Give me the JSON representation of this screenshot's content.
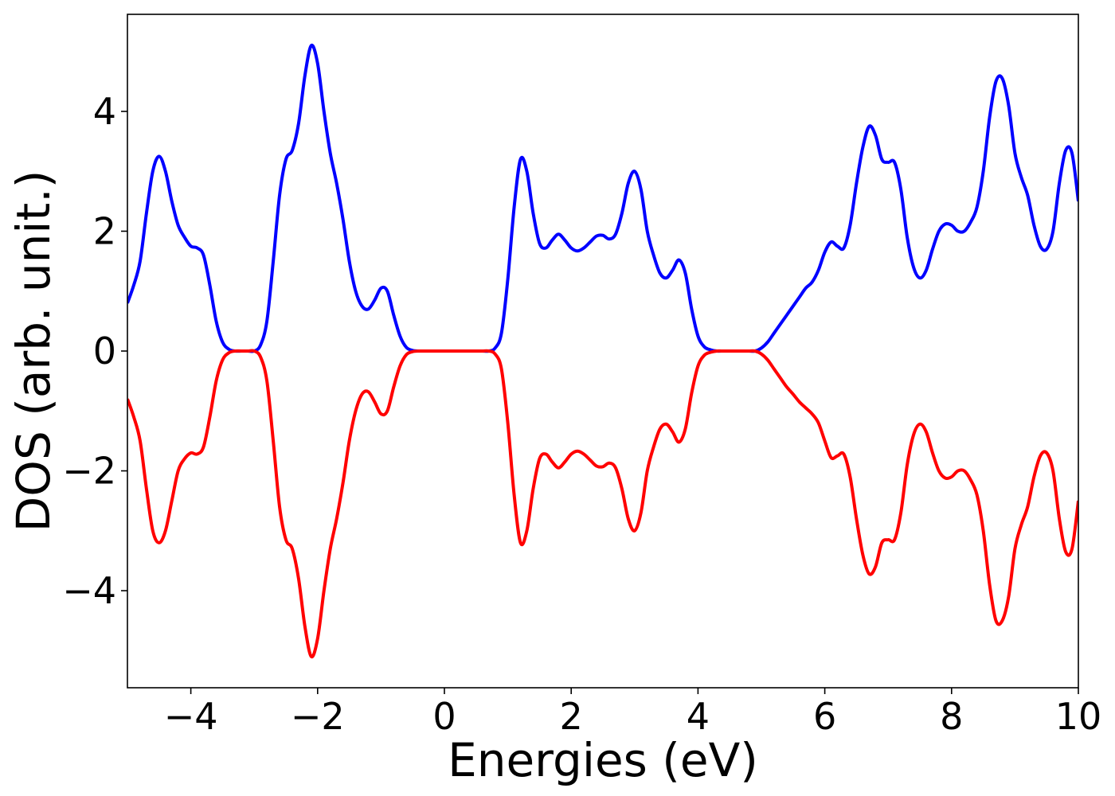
{
  "chart_data": {
    "type": "line",
    "xlabel": "Energies (eV)",
    "ylabel": "DOS (arb. unit.)",
    "x": [
      -5.0,
      -4.9,
      -4.8,
      -4.7,
      -4.6,
      -4.5,
      -4.4,
      -4.3,
      -4.2,
      -4.1,
      -4.0,
      -3.9,
      -3.8,
      -3.7,
      -3.6,
      -3.5,
      -3.4,
      -3.3,
      -3.2,
      -3.1,
      -3.0,
      -2.9,
      -2.8,
      -2.7,
      -2.6,
      -2.5,
      -2.4,
      -2.3,
      -2.2,
      -2.1,
      -2.0,
      -1.9,
      -1.8,
      -1.7,
      -1.6,
      -1.5,
      -1.4,
      -1.3,
      -1.2,
      -1.1,
      -1.0,
      -0.9,
      -0.8,
      -0.7,
      -0.6,
      -0.5,
      -0.4,
      -0.3,
      -0.2,
      -0.1,
      0.0,
      0.1,
      0.2,
      0.3,
      0.4,
      0.5,
      0.6,
      0.7,
      0.8,
      0.9,
      1.0,
      1.1,
      1.2,
      1.3,
      1.4,
      1.5,
      1.6,
      1.7,
      1.8,
      1.9,
      2.0,
      2.1,
      2.2,
      2.3,
      2.4,
      2.5,
      2.6,
      2.7,
      2.8,
      2.9,
      3.0,
      3.1,
      3.2,
      3.3,
      3.4,
      3.5,
      3.6,
      3.7,
      3.8,
      3.9,
      4.0,
      4.1,
      4.2,
      4.3,
      4.4,
      4.5,
      4.6,
      4.7,
      4.8,
      4.9,
      5.0,
      5.1,
      5.2,
      5.3,
      5.4,
      5.5,
      5.6,
      5.7,
      5.8,
      5.9,
      6.0,
      6.1,
      6.2,
      6.3,
      6.4,
      6.5,
      6.6,
      6.7,
      6.8,
      6.9,
      7.0,
      7.1,
      7.2,
      7.3,
      7.4,
      7.5,
      7.6,
      7.7,
      7.8,
      7.9,
      8.0,
      8.1,
      8.2,
      8.3,
      8.4,
      8.5,
      8.6,
      8.7,
      8.8,
      8.9,
      9.0,
      9.1,
      9.2,
      9.3,
      9.4,
      9.5,
      9.6,
      9.7,
      9.8,
      9.9,
      10.0
    ],
    "series": [
      {
        "color": "#0000ff",
        "values": [
          0.8,
          1.1,
          1.5,
          2.3,
          3.0,
          3.25,
          3.0,
          2.5,
          2.1,
          1.9,
          1.75,
          1.72,
          1.6,
          1.1,
          0.5,
          0.15,
          0.03,
          0,
          0,
          0,
          0,
          0.1,
          0.5,
          1.5,
          2.6,
          3.2,
          3.35,
          3.8,
          4.6,
          5.1,
          4.8,
          4.0,
          3.3,
          2.8,
          2.2,
          1.5,
          1.0,
          0.75,
          0.7,
          0.85,
          1.05,
          1.0,
          0.6,
          0.25,
          0.06,
          0.01,
          0,
          0,
          0,
          0,
          0,
          0,
          0,
          0,
          0,
          0,
          0,
          0,
          0.05,
          0.3,
          1.2,
          2.4,
          3.2,
          3.0,
          2.3,
          1.8,
          1.72,
          1.85,
          1.95,
          1.85,
          1.72,
          1.67,
          1.72,
          1.82,
          1.92,
          1.93,
          1.87,
          1.95,
          2.3,
          2.8,
          3.0,
          2.7,
          2.0,
          1.6,
          1.3,
          1.22,
          1.35,
          1.52,
          1.3,
          0.7,
          0.25,
          0.07,
          0.02,
          0,
          0,
          0,
          0,
          0,
          0,
          0,
          0.05,
          0.15,
          0.3,
          0.45,
          0.6,
          0.75,
          0.9,
          1.05,
          1.15,
          1.35,
          1.65,
          1.82,
          1.75,
          1.72,
          2.1,
          2.8,
          3.4,
          3.75,
          3.6,
          3.2,
          3.15,
          3.15,
          2.7,
          1.9,
          1.4,
          1.22,
          1.35,
          1.7,
          2.0,
          2.12,
          2.1,
          2.0,
          2.0,
          2.15,
          2.4,
          3.0,
          3.9,
          4.5,
          4.55,
          4.1,
          3.3,
          2.9,
          2.6,
          2.1,
          1.75,
          1.7,
          2.0,
          2.8,
          3.35,
          3.3,
          2.5
        ]
      },
      {
        "color": "#ff0000",
        "values": [
          -0.8,
          -1.1,
          -1.5,
          -2.3,
          -3.0,
          -3.2,
          -3.0,
          -2.5,
          -2.0,
          -1.8,
          -1.7,
          -1.72,
          -1.6,
          -1.1,
          -0.5,
          -0.15,
          -0.03,
          0,
          0,
          0,
          0,
          -0.1,
          -0.5,
          -1.5,
          -2.6,
          -3.15,
          -3.3,
          -3.8,
          -4.6,
          -5.1,
          -4.8,
          -4.0,
          -3.3,
          -2.8,
          -2.2,
          -1.5,
          -1.0,
          -0.72,
          -0.68,
          -0.85,
          -1.05,
          -1.0,
          -0.6,
          -0.25,
          -0.06,
          -0.01,
          0,
          0,
          0,
          0,
          0,
          0,
          0,
          0,
          0,
          0,
          0,
          0,
          -0.05,
          -0.3,
          -1.2,
          -2.4,
          -3.2,
          -3.0,
          -2.3,
          -1.8,
          -1.72,
          -1.85,
          -1.95,
          -1.85,
          -1.72,
          -1.67,
          -1.72,
          -1.82,
          -1.92,
          -1.93,
          -1.87,
          -1.95,
          -2.3,
          -2.8,
          -3.0,
          -2.7,
          -2.0,
          -1.6,
          -1.3,
          -1.22,
          -1.35,
          -1.52,
          -1.3,
          -0.7,
          -0.25,
          -0.07,
          -0.02,
          0,
          0,
          0,
          0,
          0,
          0,
          0,
          -0.05,
          -0.15,
          -0.3,
          -0.45,
          -0.6,
          -0.72,
          -0.85,
          -0.95,
          -1.05,
          -1.2,
          -1.5,
          -1.78,
          -1.75,
          -1.72,
          -2.1,
          -2.8,
          -3.4,
          -3.72,
          -3.6,
          -3.2,
          -3.15,
          -3.15,
          -2.7,
          -1.9,
          -1.4,
          -1.22,
          -1.35,
          -1.7,
          -2.0,
          -2.12,
          -2.1,
          -2.0,
          -2.0,
          -2.15,
          -2.4,
          -3.0,
          -3.9,
          -4.5,
          -4.5,
          -4.1,
          -3.3,
          -2.9,
          -2.6,
          -2.1,
          -1.75,
          -1.7,
          -2.0,
          -2.8,
          -3.35,
          -3.3,
          -2.5
        ]
      }
    ],
    "xlim": [
      -5,
      10
    ],
    "ylim": [
      -5.62,
      5.62
    ],
    "xticks": [
      {
        "value": -4,
        "label": "−4"
      },
      {
        "value": -2,
        "label": "−2"
      },
      0,
      2,
      4,
      6,
      8,
      10
    ],
    "yticks": [
      {
        "value": -4,
        "label": "−4"
      },
      {
        "value": -2,
        "label": "−2"
      },
      0,
      2,
      4
    ]
  }
}
